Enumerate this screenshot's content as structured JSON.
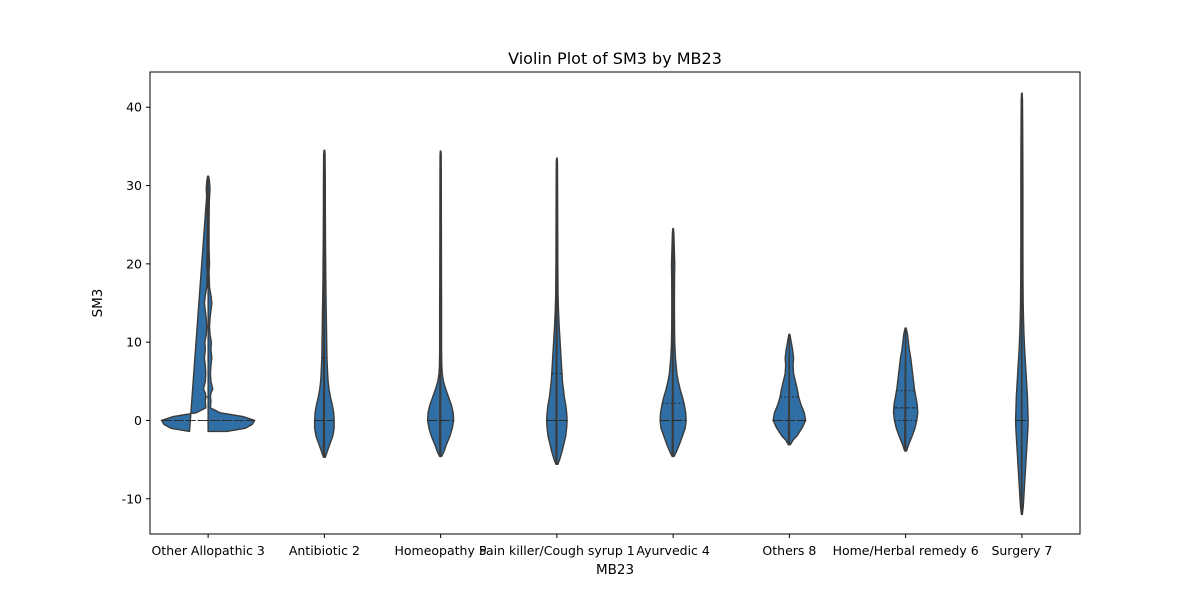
{
  "chart_data": {
    "type": "violin",
    "title": "Violin Plot of SM3 by MB23",
    "xlabel": "MB23",
    "ylabel": "SM3",
    "ylim": [
      -14.5,
      44.5
    ],
    "yticks": [
      -10,
      0,
      10,
      20,
      30,
      40
    ],
    "grid": false,
    "fill_color": "#2f6fa5",
    "edge_color": "#3b3b3b",
    "categories": [
      "Other Allopathic 3",
      "Antibiotic 2",
      "Homeopathy 5",
      "Pain killer/Cough syrup 1",
      "Ayurvedic 4",
      "Others 8",
      "Home/Herbal remedy 6",
      "Surgery 7"
    ],
    "violins": [
      {
        "category": "Other Allopathic 3",
        "min": -1.4,
        "max": 31.2,
        "quartiles": [
          0,
          0,
          3
        ],
        "profile": [
          [
            -1.4,
            0.4
          ],
          [
            -1,
            0.8
          ],
          [
            -0.5,
            0.95
          ],
          [
            0,
            1
          ],
          [
            0.5,
            0.75
          ],
          [
            1,
            0.25
          ],
          [
            1.6,
            0.05
          ],
          [
            2.5,
            0.06
          ],
          [
            3,
            0.05
          ],
          [
            3.5,
            0.06
          ],
          [
            4,
            0.1
          ],
          [
            5,
            0.06
          ],
          [
            6,
            0.05
          ],
          [
            7,
            0.06
          ],
          [
            8,
            0.08
          ],
          [
            9,
            0.06
          ],
          [
            10,
            0.07
          ],
          [
            11,
            0.04
          ],
          [
            12,
            0.03
          ],
          [
            13,
            0.04
          ],
          [
            14,
            0.06
          ],
          [
            15,
            0.08
          ],
          [
            16,
            0.06
          ],
          [
            17,
            0.03
          ],
          [
            19,
            0.02
          ],
          [
            20,
            0.03
          ],
          [
            22,
            0.02
          ],
          [
            25,
            0.02
          ],
          [
            28,
            0.025
          ],
          [
            29.5,
            0.04
          ],
          [
            30.5,
            0.03
          ],
          [
            31.2,
            0.01
          ]
        ]
      },
      {
        "category": "Antibiotic 2",
        "min": -4.7,
        "max": 34.5,
        "quartiles": [
          0,
          0,
          8
        ],
        "profile": [
          [
            -4.7,
            0.02
          ],
          [
            -4,
            0.06
          ],
          [
            -3,
            0.12
          ],
          [
            -2,
            0.18
          ],
          [
            -1,
            0.21
          ],
          [
            0,
            0.21
          ],
          [
            1,
            0.2
          ],
          [
            2,
            0.17
          ],
          [
            3,
            0.13
          ],
          [
            4,
            0.1
          ],
          [
            5,
            0.08
          ],
          [
            6,
            0.07
          ],
          [
            8,
            0.055
          ],
          [
            10,
            0.05
          ],
          [
            12,
            0.045
          ],
          [
            14,
            0.04
          ],
          [
            16,
            0.035
          ],
          [
            18,
            0.03
          ],
          [
            20,
            0.028
          ],
          [
            22,
            0.025
          ],
          [
            25,
            0.022
          ],
          [
            28,
            0.02
          ],
          [
            30,
            0.02
          ],
          [
            32,
            0.018
          ],
          [
            34,
            0.015
          ],
          [
            34.5,
            0.008
          ]
        ]
      },
      {
        "category": "Homeopathy 5",
        "min": -4.6,
        "max": 34.4,
        "quartiles": [
          0,
          0,
          0
        ],
        "profile": [
          [
            -4.6,
            0.02
          ],
          [
            -4,
            0.07
          ],
          [
            -3,
            0.13
          ],
          [
            -2,
            0.2
          ],
          [
            -1,
            0.25
          ],
          [
            0,
            0.28
          ],
          [
            1,
            0.27
          ],
          [
            2,
            0.23
          ],
          [
            3,
            0.17
          ],
          [
            4,
            0.11
          ],
          [
            5,
            0.06
          ],
          [
            6,
            0.035
          ],
          [
            7,
            0.025
          ],
          [
            9,
            0.02
          ],
          [
            12,
            0.02
          ],
          [
            15,
            0.02
          ],
          [
            18,
            0.018
          ],
          [
            21,
            0.017
          ],
          [
            25,
            0.016
          ],
          [
            28,
            0.015
          ],
          [
            31,
            0.014
          ],
          [
            34,
            0.012
          ],
          [
            34.4,
            0.006
          ]
        ]
      },
      {
        "category": "Pain killer/Cough syrup 1",
        "min": -5.6,
        "max": 33.5,
        "quartiles": [
          0,
          0,
          6
        ],
        "profile": [
          [
            -5.6,
            0.02
          ],
          [
            -5,
            0.06
          ],
          [
            -4,
            0.11
          ],
          [
            -3,
            0.15
          ],
          [
            -2,
            0.19
          ],
          [
            -1,
            0.21
          ],
          [
            0,
            0.22
          ],
          [
            1,
            0.21
          ],
          [
            2,
            0.19
          ],
          [
            3,
            0.16
          ],
          [
            4,
            0.14
          ],
          [
            5,
            0.12
          ],
          [
            6,
            0.11
          ],
          [
            7,
            0.1
          ],
          [
            8,
            0.09
          ],
          [
            10,
            0.07
          ],
          [
            12,
            0.05
          ],
          [
            14,
            0.035
          ],
          [
            16,
            0.025
          ],
          [
            20,
            0.02
          ],
          [
            24,
            0.018
          ],
          [
            28,
            0.016
          ],
          [
            31,
            0.014
          ],
          [
            33,
            0.012
          ],
          [
            33.5,
            0.006
          ]
        ]
      },
      {
        "category": "Ayurvedic 4",
        "min": -4.6,
        "max": 24.5,
        "quartiles": [
          0,
          0,
          2.2
        ],
        "profile": [
          [
            -4.6,
            0.02
          ],
          [
            -4,
            0.07
          ],
          [
            -3,
            0.14
          ],
          [
            -2,
            0.2
          ],
          [
            -1,
            0.26
          ],
          [
            0,
            0.28
          ],
          [
            1,
            0.27
          ],
          [
            2,
            0.24
          ],
          [
            3,
            0.2
          ],
          [
            4,
            0.15
          ],
          [
            5,
            0.11
          ],
          [
            6,
            0.08
          ],
          [
            8,
            0.05
          ],
          [
            10,
            0.035
          ],
          [
            12,
            0.03
          ],
          [
            15,
            0.028
          ],
          [
            18,
            0.03
          ],
          [
            20,
            0.035
          ],
          [
            22,
            0.025
          ],
          [
            24,
            0.015
          ],
          [
            24.5,
            0.006
          ]
        ]
      },
      {
        "category": "Others 8",
        "min": -3.1,
        "max": 11,
        "quartiles": [
          0,
          0,
          3
        ],
        "profile": [
          [
            -3.1,
            0.02
          ],
          [
            -2.5,
            0.08
          ],
          [
            -2,
            0.16
          ],
          [
            -1,
            0.27
          ],
          [
            0,
            0.35
          ],
          [
            1,
            0.32
          ],
          [
            2,
            0.25
          ],
          [
            3,
            0.2
          ],
          [
            4,
            0.17
          ],
          [
            5,
            0.13
          ],
          [
            6,
            0.09
          ],
          [
            7,
            0.08
          ],
          [
            8,
            0.09
          ],
          [
            9,
            0.07
          ],
          [
            10,
            0.04
          ],
          [
            11,
            0.01
          ]
        ]
      },
      {
        "category": "Home/Herbal remedy 6",
        "min": -3.9,
        "max": 11.8,
        "quartiles": [
          0,
          1.6,
          3.8
        ],
        "profile": [
          [
            -3.9,
            0.02
          ],
          [
            -3,
            0.07
          ],
          [
            -2,
            0.14
          ],
          [
            -1,
            0.2
          ],
          [
            0,
            0.24
          ],
          [
            1,
            0.26
          ],
          [
            2,
            0.25
          ],
          [
            3,
            0.22
          ],
          [
            4,
            0.19
          ],
          [
            5,
            0.17
          ],
          [
            6,
            0.15
          ],
          [
            7,
            0.13
          ],
          [
            8,
            0.11
          ],
          [
            9,
            0.08
          ],
          [
            10,
            0.06
          ],
          [
            11,
            0.04
          ],
          [
            11.8,
            0.01
          ]
        ]
      },
      {
        "category": "Surgery 7",
        "min": -12,
        "max": 41.8,
        "quartiles": [
          0,
          0,
          0
        ],
        "profile": [
          [
            -12,
            0.01
          ],
          [
            -11,
            0.03
          ],
          [
            -9,
            0.05
          ],
          [
            -7,
            0.07
          ],
          [
            -5,
            0.09
          ],
          [
            -3,
            0.11
          ],
          [
            -1,
            0.13
          ],
          [
            0,
            0.135
          ],
          [
            1,
            0.13
          ],
          [
            3,
            0.12
          ],
          [
            5,
            0.1
          ],
          [
            7,
            0.08
          ],
          [
            9,
            0.06
          ],
          [
            11,
            0.045
          ],
          [
            13,
            0.035
          ],
          [
            15,
            0.028
          ],
          [
            18,
            0.024
          ],
          [
            22,
            0.022
          ],
          [
            26,
            0.022
          ],
          [
            30,
            0.022
          ],
          [
            34,
            0.02
          ],
          [
            38,
            0.017
          ],
          [
            41,
            0.013
          ],
          [
            41.8,
            0.006
          ]
        ]
      }
    ]
  }
}
